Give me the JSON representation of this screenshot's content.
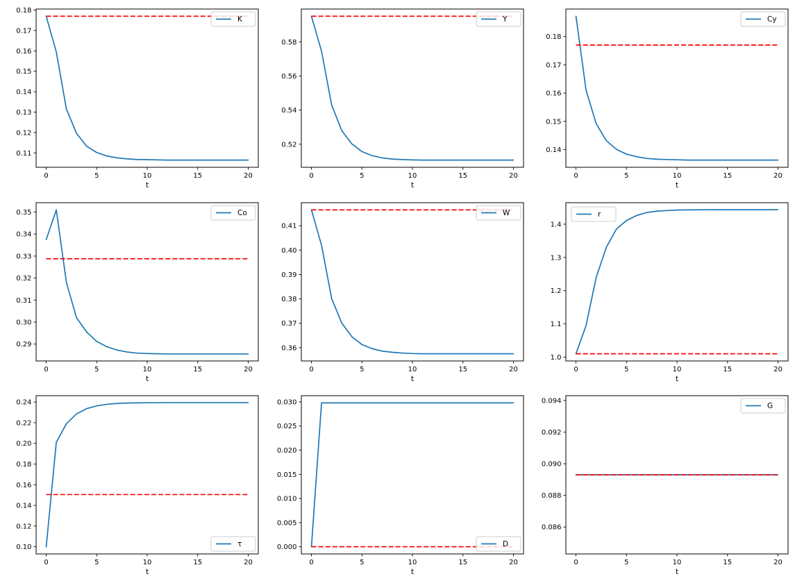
{
  "figure": {
    "background": "#ffffff",
    "series_color": "#1f77b4",
    "reference_color": "#ff0000",
    "xlabel": "t"
  },
  "chart_data": {
    "type": "line",
    "layout": "3x3-grid",
    "x": [
      0,
      1,
      2,
      3,
      4,
      5,
      6,
      7,
      8,
      9,
      10,
      11,
      12,
      13,
      14,
      15,
      16,
      17,
      18,
      19,
      20
    ],
    "xlim": [
      -1,
      21
    ],
    "xticks": [
      0,
      5,
      10,
      15,
      20
    ],
    "xlabel": "t",
    "panels": [
      {
        "id": "K",
        "label": "K",
        "legend_pos": "upper-right",
        "ylim": [
          0.10297,
          0.18052
        ],
        "yticks": [
          0.11,
          0.12,
          0.13,
          0.14,
          0.15,
          0.16,
          0.17,
          0.18
        ],
        "ydec": 2,
        "ref_value": 0.177,
        "values": [
          0.177,
          0.1595,
          0.1315,
          0.1196,
          0.1133,
          0.1102,
          0.1085,
          0.1076,
          0.1071,
          0.1068,
          0.1067,
          0.1066,
          0.1065,
          0.1065,
          0.1065,
          0.1065,
          0.1065,
          0.1065,
          0.1065,
          0.1065,
          0.1065
        ]
      },
      {
        "id": "Y",
        "label": "Y",
        "legend_pos": "upper-right",
        "ylim": [
          0.50648,
          0.59922
        ],
        "yticks": [
          0.52,
          0.54,
          0.56,
          0.58
        ],
        "ydec": 2,
        "ref_value": 0.595,
        "values": [
          0.595,
          0.5745,
          0.543,
          0.528,
          0.5202,
          0.5157,
          0.5133,
          0.512,
          0.5113,
          0.511,
          0.5108,
          0.5107,
          0.5107,
          0.5107,
          0.5107,
          0.5107,
          0.5107,
          0.5107,
          0.5107,
          0.5107,
          0.5107
        ]
      },
      {
        "id": "Cy",
        "label": "Cy",
        "legend_pos": "upper-right",
        "ylim": [
          0.13375,
          0.18975
        ],
        "yticks": [
          0.14,
          0.15,
          0.16,
          0.17,
          0.18
        ],
        "ydec": 2,
        "ref_value": 0.177,
        "values": [
          0.1872,
          0.161,
          0.1492,
          0.1432,
          0.1401,
          0.1384,
          0.1375,
          0.1369,
          0.1366,
          0.1365,
          0.1364,
          0.1363,
          0.1363,
          0.1363,
          0.1363,
          0.1363,
          0.1363,
          0.1363,
          0.1363,
          0.1363,
          0.1363
        ]
      },
      {
        "id": "Co",
        "label": "Co",
        "legend_pos": "upper-right",
        "ylim": [
          0.28233,
          0.35427
        ],
        "yticks": [
          0.29,
          0.3,
          0.31,
          0.32,
          0.33,
          0.34,
          0.35
        ],
        "ydec": 2,
        "ref_value": 0.3288,
        "values": [
          0.3375,
          0.351,
          0.318,
          0.302,
          0.2955,
          0.2912,
          0.2888,
          0.2873,
          0.2864,
          0.2859,
          0.2857,
          0.2856,
          0.2855,
          0.2855,
          0.2855,
          0.2855,
          0.2855,
          0.2855,
          0.2855,
          0.2855,
          0.2855
        ]
      },
      {
        "id": "W",
        "label": "W",
        "legend_pos": "upper-right",
        "ylim": [
          0.35455,
          0.41945
        ],
        "yticks": [
          0.36,
          0.37,
          0.38,
          0.39,
          0.4,
          0.41
        ],
        "ydec": 2,
        "ref_value": 0.4165,
        "values": [
          0.4165,
          0.402,
          0.3802,
          0.3701,
          0.3645,
          0.3613,
          0.3596,
          0.3586,
          0.3581,
          0.3578,
          0.3576,
          0.3575,
          0.3575,
          0.3575,
          0.3575,
          0.3575,
          0.3575,
          0.3575,
          0.3575,
          0.3575,
          0.3575
        ]
      },
      {
        "id": "r",
        "label": "r",
        "legend_pos": "upper-left",
        "ylim": [
          0.98835,
          1.46465
        ],
        "yticks": [
          1.0,
          1.1,
          1.2,
          1.3,
          1.4
        ],
        "ydec": 1,
        "ref_value": 1.01,
        "values": [
          1.01,
          1.095,
          1.24,
          1.33,
          1.385,
          1.411,
          1.426,
          1.435,
          1.439,
          1.441,
          1.4425,
          1.443,
          1.4433,
          1.4434,
          1.4435,
          1.4435,
          1.4435,
          1.4435,
          1.4435,
          1.4435,
          1.4435
        ]
      },
      {
        "id": "tau",
        "label": "τ",
        "legend_pos": "lower-right",
        "ylim": [
          0.09304,
          0.24616
        ],
        "yticks": [
          0.1,
          0.12,
          0.14,
          0.16,
          0.18,
          0.2,
          0.22,
          0.24
        ],
        "ydec": 2,
        "ref_value": 0.1505,
        "values": [
          0.1,
          0.201,
          0.219,
          0.2285,
          0.2336,
          0.2363,
          0.2378,
          0.2386,
          0.239,
          0.2392,
          0.2393,
          0.2393,
          0.2394,
          0.2394,
          0.2394,
          0.2394,
          0.2394,
          0.2394,
          0.2394,
          0.2394,
          0.2394
        ]
      },
      {
        "id": "D",
        "label": "D",
        "legend_pos": "lower-right",
        "ylim": [
          -0.00149,
          0.03129
        ],
        "yticks": [
          0.0,
          0.005,
          0.01,
          0.015,
          0.02,
          0.025,
          0.03
        ],
        "ydec": 3,
        "ref_value": 0.0,
        "values": [
          0.0,
          0.0298,
          0.0298,
          0.0298,
          0.0298,
          0.0298,
          0.0298,
          0.0298,
          0.0298,
          0.0298,
          0.0298,
          0.0298,
          0.0298,
          0.0298,
          0.0298,
          0.0298,
          0.0298,
          0.0298,
          0.0298,
          0.0298,
          0.0298
        ]
      },
      {
        "id": "G",
        "label": "G",
        "legend_pos": "upper-right",
        "ylim": [
          0.0843,
          0.0943
        ],
        "yticks": [
          0.086,
          0.088,
          0.09,
          0.092,
          0.094
        ],
        "ydec": 3,
        "ref_value": 0.0893,
        "values": [
          0.0893,
          0.0893,
          0.0893,
          0.0893,
          0.0893,
          0.0893,
          0.0893,
          0.0893,
          0.0893,
          0.0893,
          0.0893,
          0.0893,
          0.0893,
          0.0893,
          0.0893,
          0.0893,
          0.0893,
          0.0893,
          0.0893,
          0.0893,
          0.0893
        ]
      }
    ]
  }
}
